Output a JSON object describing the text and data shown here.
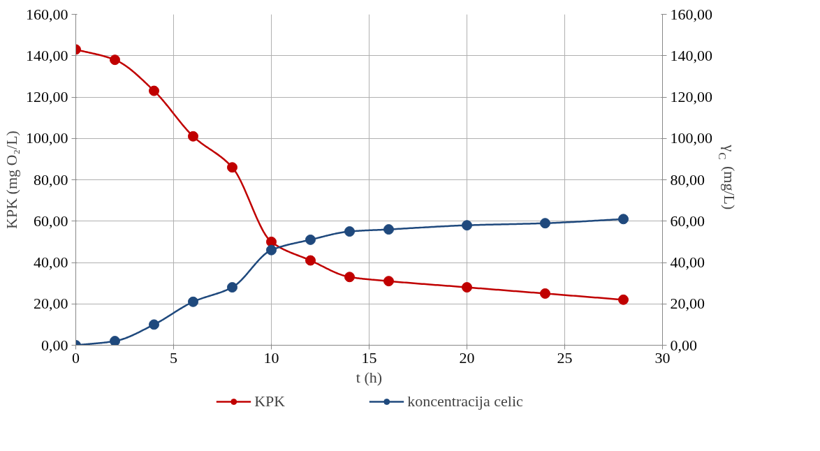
{
  "chart_data": {
    "type": "line",
    "xlabel": "t (h)",
    "ylabel": "KPK (mg O₂/L)",
    "y2label": "γ$_{C}$ (mg/L)",
    "x": [
      0,
      2,
      4,
      6,
      8,
      10,
      12,
      14,
      16,
      20,
      24,
      28
    ],
    "series": [
      {
        "name": "KPK",
        "color": "#c00000",
        "values": [
          143,
          138,
          123,
          101,
          86,
          50,
          41,
          33,
          31,
          28,
          25,
          22
        ]
      },
      {
        "name": "koncentracija celic",
        "color": "#1f497d",
        "values": [
          0,
          2,
          10,
          21,
          28,
          46,
          51,
          55,
          56,
          58,
          59,
          61
        ]
      }
    ],
    "xlim": [
      0,
      30
    ],
    "xticks": [
      0,
      5,
      10,
      15,
      20,
      25,
      30
    ],
    "ylim": [
      0,
      160
    ],
    "yticks": [
      {
        "value": 0,
        "label": "0,00"
      },
      {
        "value": 20,
        "label": "20,00"
      },
      {
        "value": 40,
        "label": "40,00"
      },
      {
        "value": 60,
        "label": "60,00"
      },
      {
        "value": 80,
        "label": "80,00"
      },
      {
        "value": 100,
        "label": "100,00"
      },
      {
        "value": 120,
        "label": "120,00"
      },
      {
        "value": 140,
        "label": "140,00"
      },
      {
        "value": 160,
        "label": "160,00"
      }
    ],
    "y2lim": [
      0,
      160
    ],
    "y2ticks": [
      {
        "value": 0,
        "label": "0,00"
      },
      {
        "value": 20,
        "label": "20,00"
      },
      {
        "value": 40,
        "label": "40,00"
      },
      {
        "value": 60,
        "label": "60,00"
      },
      {
        "value": 80,
        "label": "80,00"
      },
      {
        "value": 100,
        "label": "100,00"
      },
      {
        "value": 120,
        "label": "120,00"
      },
      {
        "value": 140,
        "label": "140,00"
      },
      {
        "value": 160,
        "label": "160,00"
      }
    ],
    "grid": true,
    "legend": "bottom",
    "marker": "circle",
    "line_style": "solid"
  }
}
